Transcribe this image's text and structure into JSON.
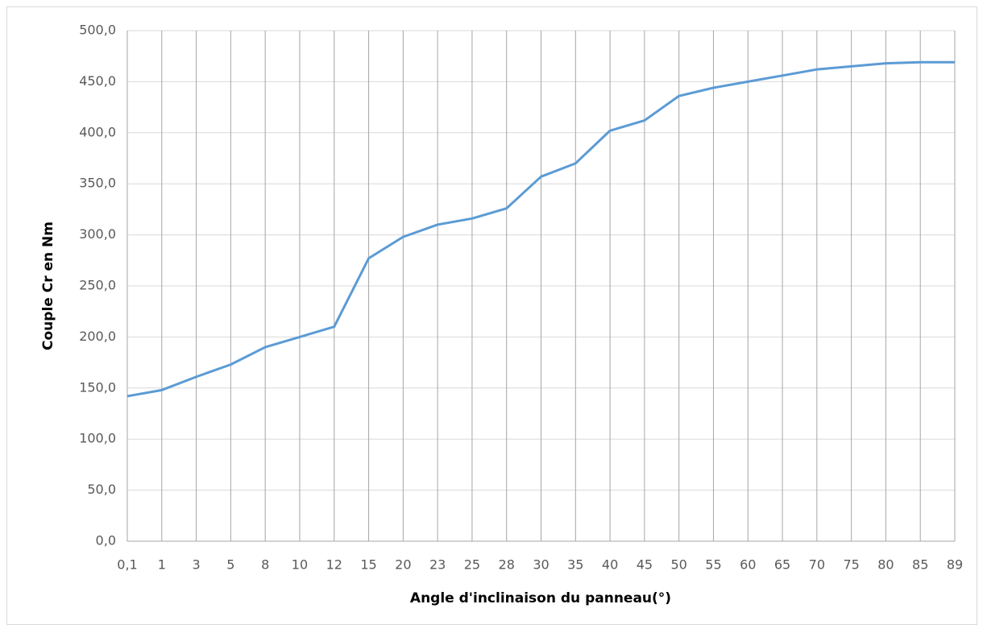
{
  "chart_data": {
    "type": "line",
    "x_label": "Angle d'inclinaison du panneau(°)",
    "y_label": "Couple Cr en Nm",
    "categories": [
      "0,1",
      "1",
      "3",
      "5",
      "8",
      "10",
      "12",
      "15",
      "20",
      "23",
      "25",
      "28",
      "30",
      "35",
      "40",
      "45",
      "50",
      "55",
      "60",
      "65",
      "70",
      "75",
      "80",
      "85",
      "89"
    ],
    "values": [
      142,
      148,
      161,
      173,
      190,
      200,
      210,
      277,
      298,
      310,
      316,
      326,
      357,
      370,
      402,
      412,
      436,
      444,
      450,
      456,
      462,
      465,
      468,
      469,
      469
    ],
    "color": "#5b9bd5",
    "ylim": [
      0,
      500
    ],
    "yticks": [
      {
        "value": 0,
        "label": "0,0"
      },
      {
        "value": 50,
        "label": "50,0"
      },
      {
        "value": 100,
        "label": "100,0"
      },
      {
        "value": 150,
        "label": "150,0"
      },
      {
        "value": 200,
        "label": "200,0"
      },
      {
        "value": 250,
        "label": "250,0"
      },
      {
        "value": 300,
        "label": "300,0"
      },
      {
        "value": 350,
        "label": "350,0"
      },
      {
        "value": 400,
        "label": "400,0"
      },
      {
        "value": 450,
        "label": "450,0"
      },
      {
        "value": 500,
        "label": "500,0"
      }
    ],
    "grid": true
  }
}
